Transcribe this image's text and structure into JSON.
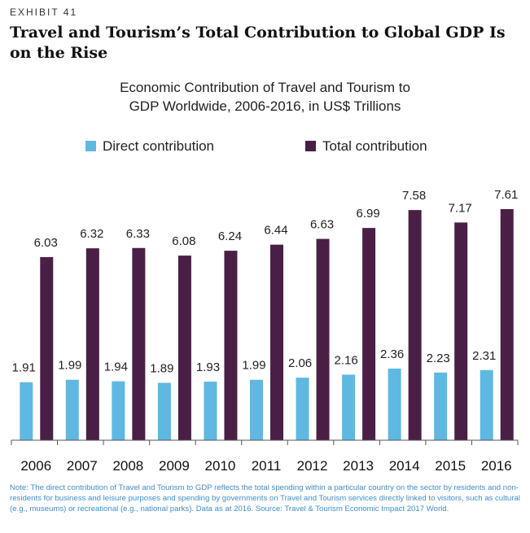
{
  "exhibit": "EXHIBIT 41",
  "headline": "Travel and Tourism’s Total Contribution to Global GDP Is on the Rise",
  "colors": {
    "direct": "#5fb8e1",
    "total": "#4a1f45",
    "note": "#3e8ecb"
  },
  "chart_data": {
    "type": "bar",
    "title": "Economic Contribution of Travel and Tourism to GDP Worldwide, 2006-2016, in US$ Trillions",
    "title_lines": [
      "Economic Contribution of Travel and Tourism to",
      "GDP Worldwide, 2006-2016, in US$ Trillions"
    ],
    "categories": [
      "2006",
      "2007",
      "2008",
      "2009",
      "2010",
      "2011",
      "2012",
      "2013",
      "2014",
      "2015",
      "2016"
    ],
    "series": [
      {
        "name": "Direct contribution",
        "values": [
          1.91,
          1.99,
          1.94,
          1.89,
          1.93,
          1.99,
          2.06,
          2.16,
          2.36,
          2.23,
          2.31
        ],
        "labels": [
          "1.91",
          "1.99",
          "1.94",
          "1.89",
          "1.93",
          "1.99",
          "2.06",
          "2.16",
          "2.36",
          "2.23",
          "2.31"
        ]
      },
      {
        "name": "Total contribution",
        "values": [
          6.03,
          6.32,
          6.33,
          6.08,
          6.24,
          6.44,
          6.63,
          6.99,
          7.58,
          7.17,
          7.61
        ],
        "labels": [
          "6.03",
          "6.32",
          "6.33",
          "6.08",
          "6.24",
          "6.44",
          "6.63",
          "6.99",
          "7.58",
          "7.17",
          "7.61"
        ]
      }
    ],
    "xlabel": "",
    "ylabel": "",
    "ylim": [
      0,
      7.61
    ],
    "legend": "top"
  },
  "note": "Note: The direct contribution of Travel and Tourism to GDP reflects the total spending within a particular country on the sector by residents and non-residents for business and leisure purposes and spending by governments on Travel and Tourism services directly linked to visitors, such as cultural (e.g., museums) or recreational (e.g., national parks). Data as at 2016. Source: Travel & Tourism Economic Impact 2017 World."
}
